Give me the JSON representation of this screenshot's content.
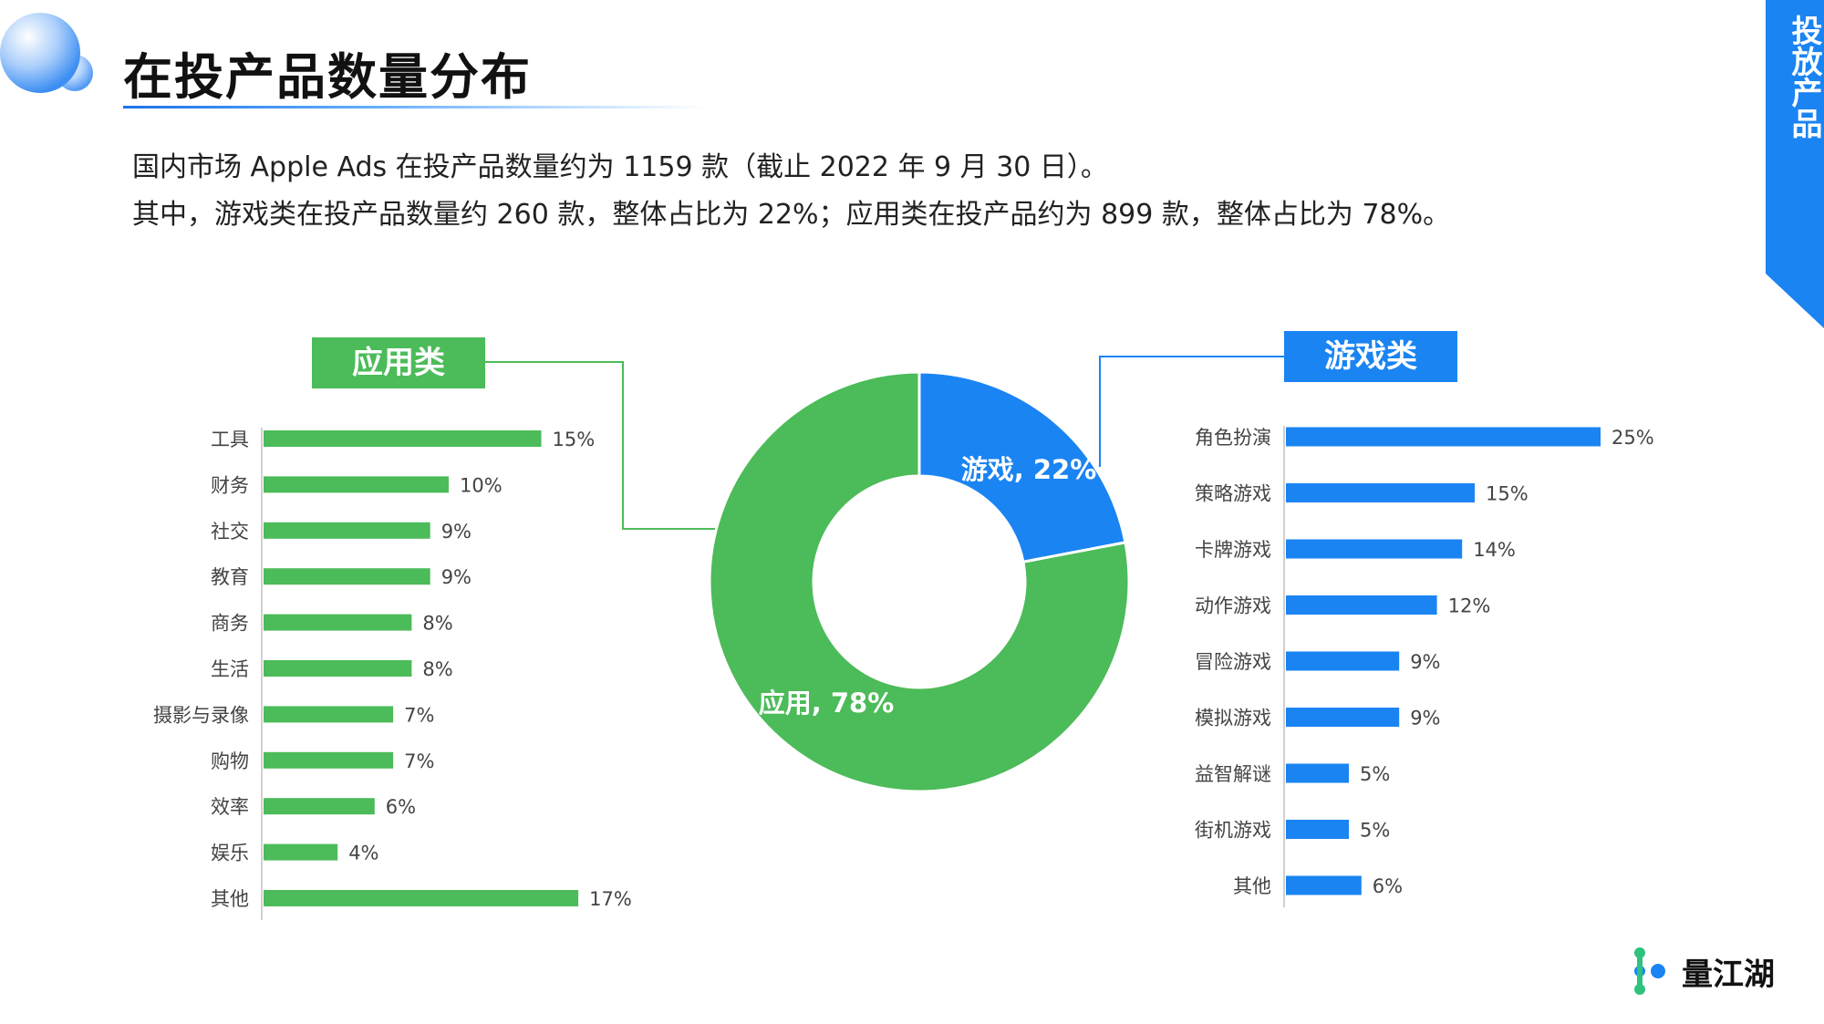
{
  "header": {
    "title": "在投产品数量分布",
    "side_tab": "投放产品"
  },
  "description": {
    "line1": "国内市场 Apple Ads 在投产品数量约为 1159 款（截止 2022 年 9 月 30 日）。",
    "line2": "其中，游戏类在投产品数量约 260 款，整体占比为 22%；应用类在投产品约为 899 款，整体占比为 78%。"
  },
  "brand": {
    "logo_text": "量江湖"
  },
  "colors": {
    "app": "#4cbb59",
    "game": "#1a84f2",
    "accent_blue": "#1a73e8"
  },
  "chart_data": [
    {
      "type": "bar",
      "orientation": "horizontal",
      "legend_label": "应用类",
      "categories": [
        "工具",
        "财务",
        "社交",
        "教育",
        "商务",
        "生活",
        "摄影与录像",
        "购物",
        "效率",
        "娱乐",
        "其他"
      ],
      "values": [
        15,
        10,
        9,
        9,
        8,
        8,
        7,
        7,
        6,
        4,
        17
      ],
      "value_labels": [
        "15%",
        "10%",
        "9%",
        "9%",
        "8%",
        "8%",
        "7%",
        "7%",
        "6%",
        "4%",
        "17%"
      ],
      "color": "#4cbb59"
    },
    {
      "type": "pie",
      "style": "donut",
      "categories": [
        "游戏",
        "应用"
      ],
      "values": [
        22,
        78
      ],
      "slice_labels": [
        "游戏, 22%",
        "应用, 78%"
      ],
      "colors": [
        "#1a84f2",
        "#4cbb59"
      ]
    },
    {
      "type": "bar",
      "orientation": "horizontal",
      "legend_label": "游戏类",
      "categories": [
        "角色扮演",
        "策略游戏",
        "卡牌游戏",
        "动作游戏",
        "冒险游戏",
        "模拟游戏",
        "益智解谜",
        "街机游戏",
        "其他"
      ],
      "values": [
        25,
        15,
        14,
        12,
        9,
        9,
        5,
        5,
        6
      ],
      "value_labels": [
        "25%",
        "15%",
        "14%",
        "12%",
        "9%",
        "9%",
        "5%",
        "5%",
        "6%"
      ],
      "color": "#1a84f2"
    }
  ]
}
